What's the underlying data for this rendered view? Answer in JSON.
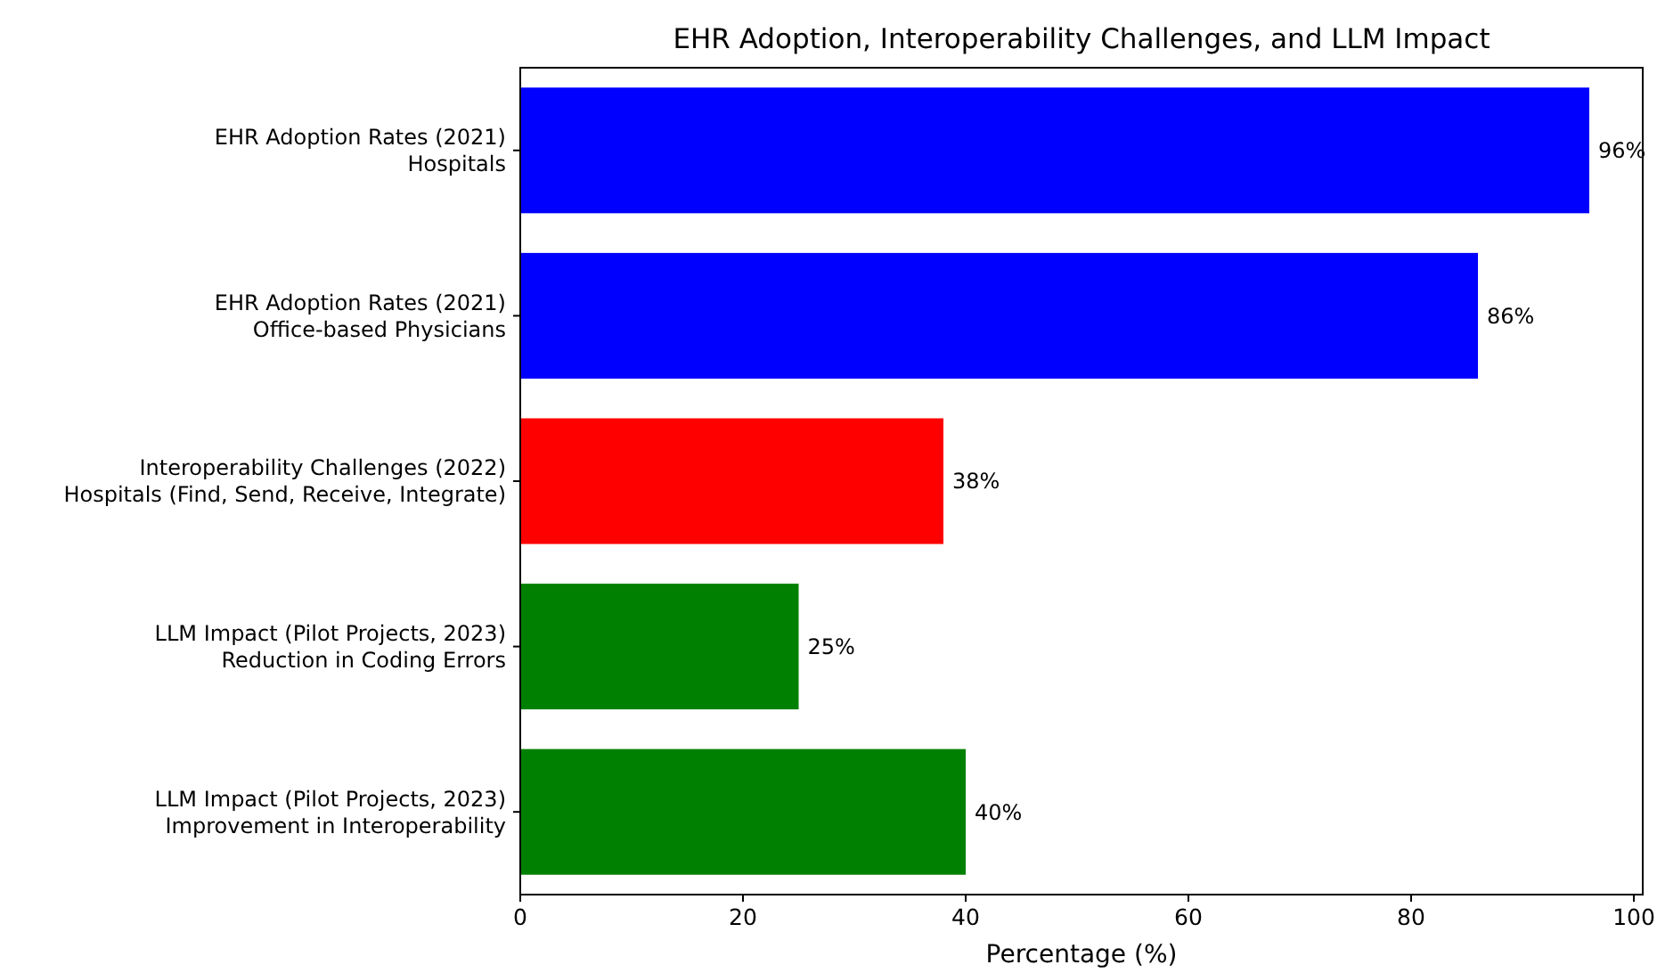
{
  "chart_data": {
    "type": "bar",
    "orientation": "horizontal",
    "title": "EHR Adoption, Interoperability Challenges, and LLM Impact",
    "xlabel": "Percentage (%)",
    "categories": [
      "EHR Adoption Rates (2021)\nHospitals",
      "EHR Adoption Rates (2021)\nOffice-based Physicians",
      "Interoperability Challenges (2022)\nHospitals (Find, Send, Receive, Integrate)",
      "LLM Impact (Pilot Projects, 2023)\nReduction in Coding Errors",
      "LLM Impact (Pilot Projects, 2023)\nImprovement in Interoperability"
    ],
    "values": [
      96,
      86,
      38,
      25,
      40
    ],
    "colors": [
      "#0000ff",
      "#0000ff",
      "#ff0000",
      "#008000",
      "#008000"
    ],
    "value_labels": [
      "96%",
      "86%",
      "38%",
      "25%",
      "40%"
    ],
    "xlim": [
      0,
      100.8
    ],
    "xticks": [
      0,
      20,
      40,
      60,
      80,
      100
    ]
  }
}
